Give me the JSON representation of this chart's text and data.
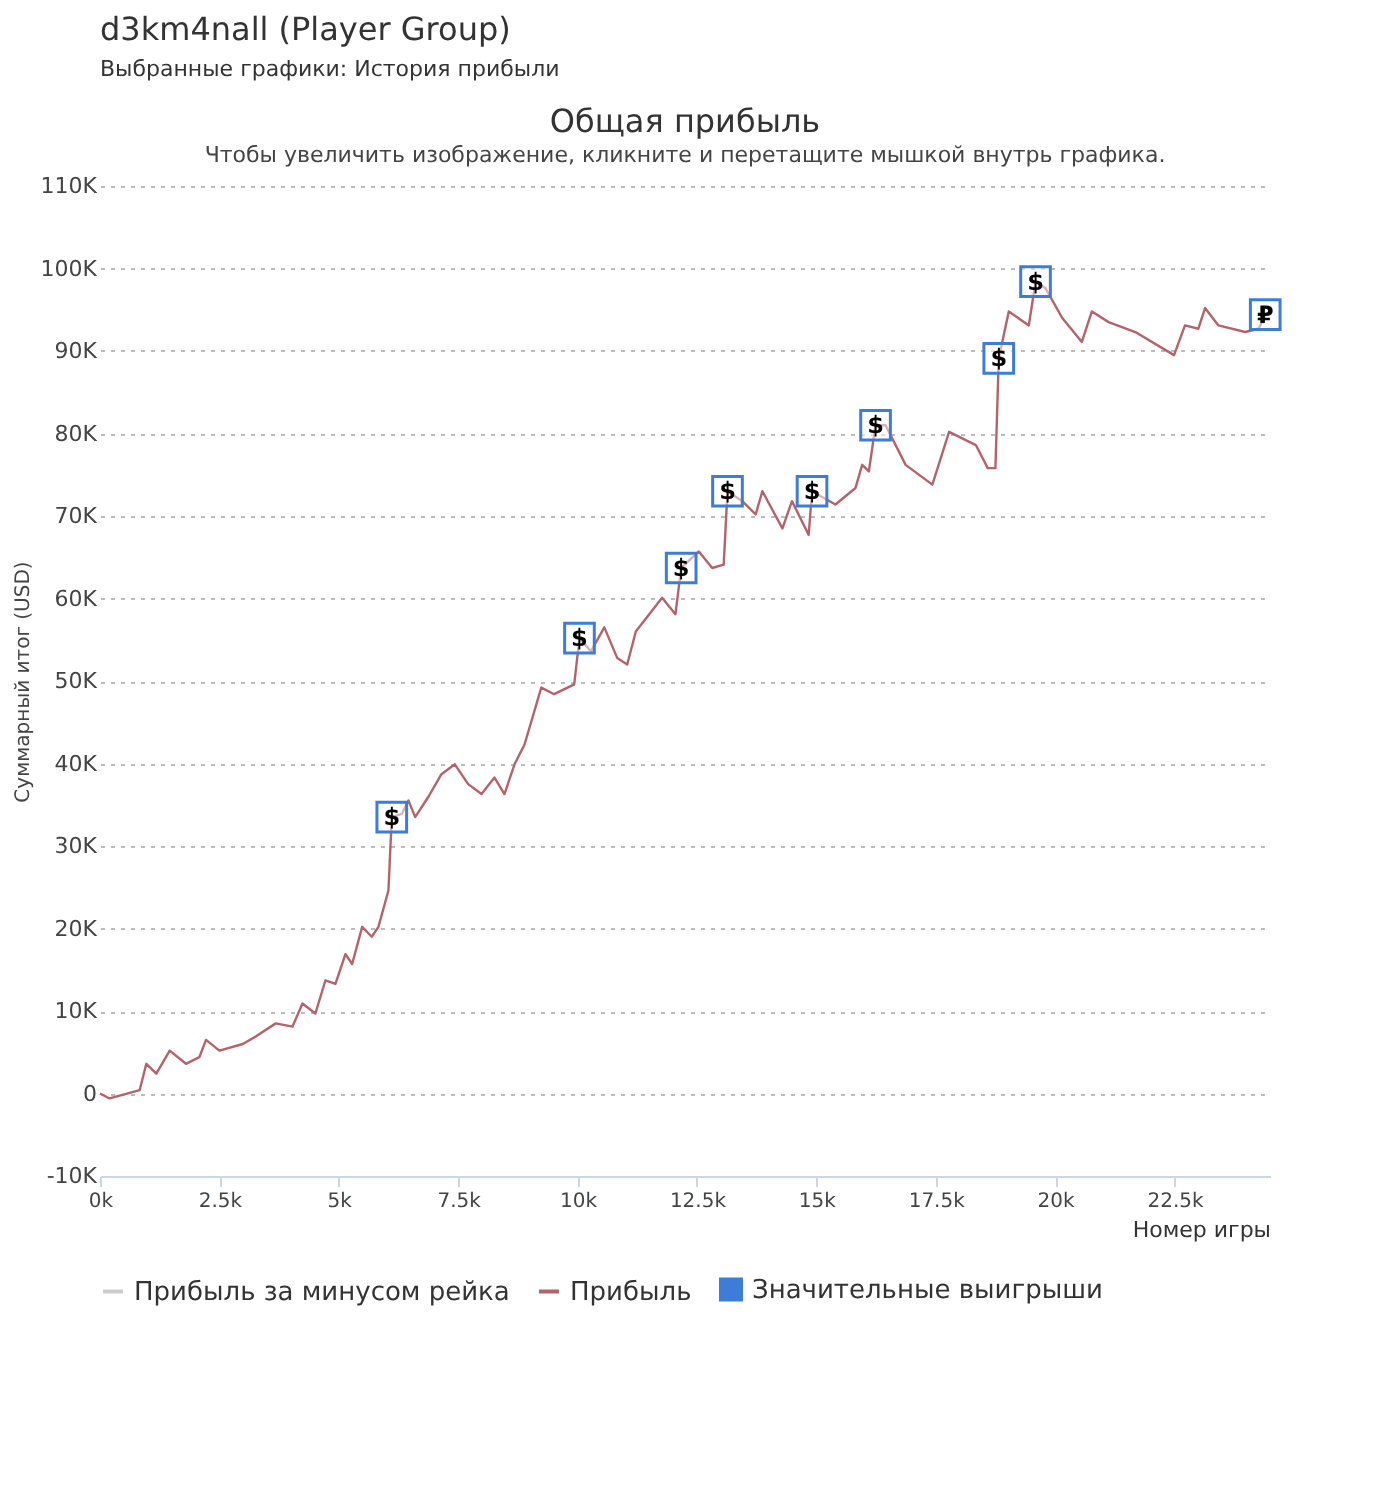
{
  "chart_data": {
    "type": "line",
    "title": "Общая прибыль",
    "subtitle": "Чтобы увеличить изображение, кликните и перетащите мышкой внутрь графика.",
    "xlabel": "Номер игры",
    "ylabel": "Суммарный итог (USD)",
    "annotations": [
      "d3km4nall (Player Group)",
      "Выбранные графики: История прибыли"
    ],
    "xlim": [
      0,
      24500
    ],
    "xticks": [
      {
        "value": 0,
        "label": "0k"
      },
      {
        "value": 2500,
        "label": "2.5k"
      },
      {
        "value": 5000,
        "label": "5k"
      },
      {
        "value": 7500,
        "label": "7.5k"
      },
      {
        "value": 10000,
        "label": "10k"
      },
      {
        "value": 12500,
        "label": "12.5k"
      },
      {
        "value": 15000,
        "label": "15k"
      },
      {
        "value": 17500,
        "label": "17.5k"
      },
      {
        "value": 20000,
        "label": "20k"
      },
      {
        "value": 22500,
        "label": "22.5k"
      }
    ],
    "ylim": [
      -10000,
      110000
    ],
    "yticks": [
      {
        "value": -10000,
        "label": "-10K"
      },
      0,
      {
        "value": 10000,
        "label": "10K"
      },
      {
        "value": 20000,
        "label": "20K"
      },
      {
        "value": 30000,
        "label": "30K"
      },
      {
        "value": 40000,
        "label": "40K"
      },
      {
        "value": 50000,
        "label": "50K"
      },
      {
        "value": 60000,
        "label": "60K"
      },
      {
        "value": 70000,
        "label": "70K"
      },
      {
        "value": 80000,
        "label": "80K"
      },
      {
        "value": 90000,
        "label": "90K"
      },
      {
        "value": 100000,
        "label": "100K"
      },
      {
        "value": 110000,
        "label": "110K"
      }
    ],
    "grid": "y",
    "legend": "bottom",
    "marker": "none",
    "line_style": "solid",
    "series": [
      {
        "name": "Прибыль за минусом рейка",
        "color": "#cccccc"
      },
      {
        "name": "Прибыль",
        "color": "#b5636b",
        "x": [
          0,
          200,
          830,
          970,
          1180,
          1460,
          1800,
          2080,
          2220,
          2500,
          2990,
          3260,
          3680,
          4030,
          4240,
          4510,
          4720,
          4930,
          5140,
          5280,
          5490,
          5690,
          5830,
          6040,
          6110,
          6320,
          6460,
          6600,
          6880,
          7150,
          7430,
          7710,
          7990,
          8260,
          8470,
          8680,
          8890,
          9240,
          9510,
          9930,
          10040,
          10280,
          10560,
          10830,
          11040,
          11220,
          11770,
          12050,
          12170,
          12540,
          12820,
          13060,
          13140,
          13450,
          13730,
          13870,
          14290,
          14490,
          14840,
          14910,
          15400,
          15820,
          15960,
          16100,
          16240,
          16450,
          16870,
          17430,
          17780,
          18340,
          18590,
          18750,
          18820,
          19030,
          19450,
          19590,
          19800,
          20150,
          20560,
          20770,
          21120,
          21680,
          22490,
          22720,
          23000,
          23140,
          23420,
          23980,
          24260,
          24400
        ],
        "values": [
          0,
          -600,
          400,
          3600,
          2400,
          5200,
          3600,
          4400,
          6500,
          5200,
          6000,
          6900,
          8500,
          8100,
          10900,
          9700,
          13700,
          13300,
          16900,
          15700,
          20200,
          19000,
          20200,
          24600,
          33500,
          33900,
          35500,
          33500,
          36000,
          38700,
          39900,
          37500,
          36300,
          38300,
          36300,
          39900,
          42300,
          49200,
          48400,
          49600,
          55200,
          53600,
          56500,
          52800,
          52000,
          56000,
          60100,
          58100,
          63700,
          65700,
          63700,
          64100,
          73000,
          71800,
          70200,
          73000,
          68500,
          71800,
          67700,
          73000,
          71400,
          73400,
          76200,
          75400,
          81000,
          81000,
          76200,
          73800,
          80200,
          78600,
          75800,
          75800,
          89100,
          94800,
          93100,
          98400,
          97600,
          94000,
          91100,
          94800,
          93500,
          92300,
          89500,
          93100,
          92700,
          95200,
          93100,
          92300,
          92700,
          94400
        ]
      },
      {
        "name": "Значительные выигрыши",
        "color": "#3d7dd8",
        "type": "scatter",
        "marker": "square",
        "x": [
          6110,
          10040,
          12170,
          13140,
          14910,
          16240,
          18820,
          19590,
          24400
        ],
        "values": [
          33500,
          55200,
          63700,
          73000,
          73000,
          81000,
          89100,
          98400,
          94400
        ],
        "value_labels": [
          "$",
          "$",
          "$",
          "$",
          "$",
          "$",
          "$",
          "$",
          "₽"
        ]
      }
    ]
  }
}
